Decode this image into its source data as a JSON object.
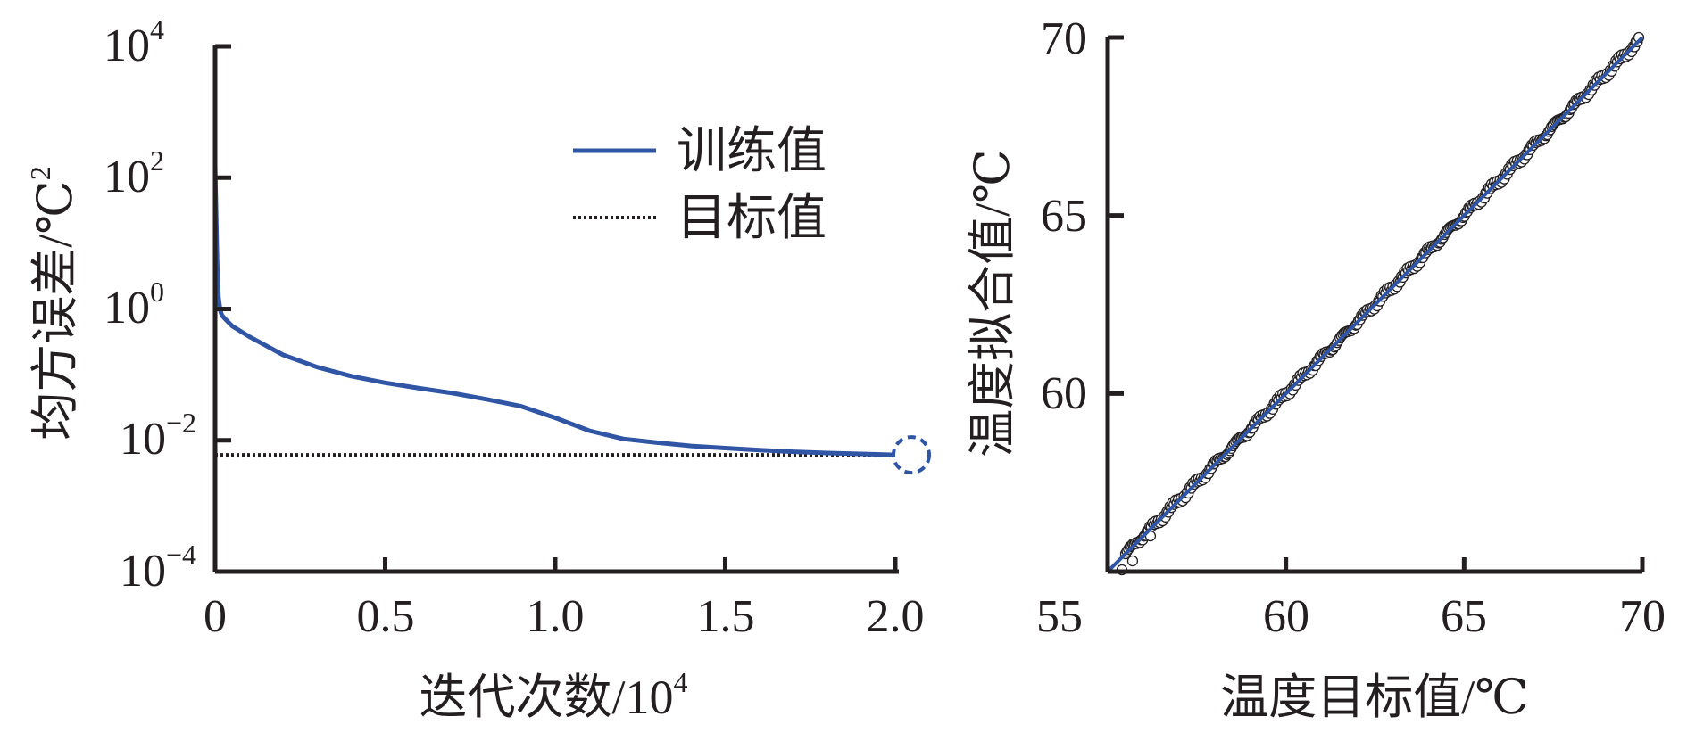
{
  "colors": {
    "train": "#2f55a4",
    "target": "#231f20",
    "axis": "#231f20",
    "marker": "#231f20"
  },
  "chart_data": [
    {
      "id": "left",
      "type": "line",
      "xlabel": "迭代次数/10",
      "xlabel_sup": "4",
      "ylabel": "均方误差/℃",
      "ylabel_sup": "2",
      "xlim": [
        0,
        2.0
      ],
      "ylim": [
        0.0001,
        10000
      ],
      "yscale": "log",
      "xticks": [
        0,
        0.5,
        1.0,
        1.5,
        2.0
      ],
      "xtick_labels": [
        "0",
        "0.5",
        "1.0",
        "1.5",
        "2.0"
      ],
      "yticks": [
        0.0001,
        0.01,
        1,
        100,
        10000
      ],
      "ytick_base": [
        "10",
        "10",
        "10",
        "10",
        "10"
      ],
      "ytick_exp": [
        "−4",
        "−2",
        "0",
        "2",
        "4"
      ],
      "legend": {
        "position": "top-right",
        "train_label": "训练值",
        "target_label": "目标值"
      },
      "series": [
        {
          "name": "训练值",
          "style": "solid",
          "x": [
            0,
            0.003,
            0.006,
            0.01,
            0.015,
            0.02,
            0.03,
            0.05,
            0.1,
            0.2,
            0.3,
            0.4,
            0.5,
            0.6,
            0.7,
            0.8,
            0.9,
            1.0,
            1.1,
            1.2,
            1.3,
            1.4,
            1.5,
            1.6,
            1.7,
            1.8,
            1.9,
            2.0
          ],
          "y": [
            150,
            30,
            5,
            1.5,
            0.95,
            0.8,
            0.7,
            0.55,
            0.38,
            0.2,
            0.13,
            0.095,
            0.075,
            0.062,
            0.052,
            0.042,
            0.033,
            0.022,
            0.014,
            0.0105,
            0.0092,
            0.0082,
            0.0076,
            0.0071,
            0.0067,
            0.0064,
            0.0062,
            0.006
          ]
        },
        {
          "name": "目标值",
          "style": "dotted",
          "x": [
            0,
            2.0
          ],
          "y": [
            0.006,
            0.006
          ]
        }
      ],
      "annotations": [
        {
          "type": "dashed-circle",
          "x": 2.0,
          "y": 0.006
        }
      ]
    },
    {
      "id": "right",
      "type": "scatter",
      "xlabel": "温度目标值/℃",
      "ylabel": "温度拟合值/℃",
      "xlim": [
        55,
        70
      ],
      "ylim": [
        55,
        70
      ],
      "xticks": [
        55,
        60,
        65,
        70
      ],
      "yticks": [
        60,
        65,
        70
      ],
      "xtick_labels": [
        "55",
        "60",
        "65",
        "70"
      ],
      "ytick_labels": [
        "60",
        "65",
        "70"
      ],
      "fit_line": {
        "x": [
          55,
          70
        ],
        "y": [
          55,
          70
        ]
      },
      "points": {
        "x_start": 55.5,
        "x_end": 69.9,
        "count": 360,
        "deviation_amplitude": 0.12,
        "outliers": [
          {
            "x": 55.7,
            "y": 55.3
          },
          {
            "x": 56.2,
            "y": 56.0
          },
          {
            "x": 55.4,
            "y": 55.05
          }
        ]
      }
    }
  ]
}
